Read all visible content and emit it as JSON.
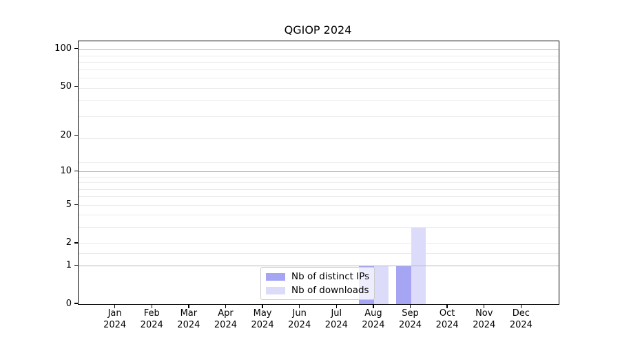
{
  "chart_data": {
    "type": "bar",
    "title": "QGIOP 2024",
    "categories": [
      "Jan",
      "Feb",
      "Mar",
      "Apr",
      "May",
      "Jun",
      "Jul",
      "Aug",
      "Sep",
      "Oct",
      "Nov",
      "Dec"
    ],
    "category_year": "2024",
    "series": [
      {
        "name": "Nb of distinct IPs",
        "color": "#a5a5f3",
        "values": [
          0,
          0,
          0,
          0,
          0,
          0,
          0,
          1,
          1,
          0,
          0,
          0
        ]
      },
      {
        "name": "Nb of downloads",
        "color": "#dcdcfa",
        "values": [
          0,
          0,
          0,
          0,
          0,
          0,
          0,
          1,
          3,
          0,
          0,
          0
        ]
      }
    ],
    "yscale": "log1p",
    "ylim": [
      0,
      116
    ],
    "yticks": [
      100,
      50,
      20,
      10,
      5,
      2,
      1,
      0
    ],
    "grid": {
      "major_values": [
        1,
        10,
        100
      ],
      "minor_values": [
        1.5,
        2,
        3,
        4,
        5,
        6,
        7,
        8,
        9,
        12,
        19,
        29,
        39,
        49,
        59,
        69,
        79,
        89
      ],
      "major_color": "#b4b4b4",
      "minor_color": "#eaeaea"
    },
    "legend": {
      "position": "lower center",
      "frame_color": "#cccccc"
    }
  }
}
